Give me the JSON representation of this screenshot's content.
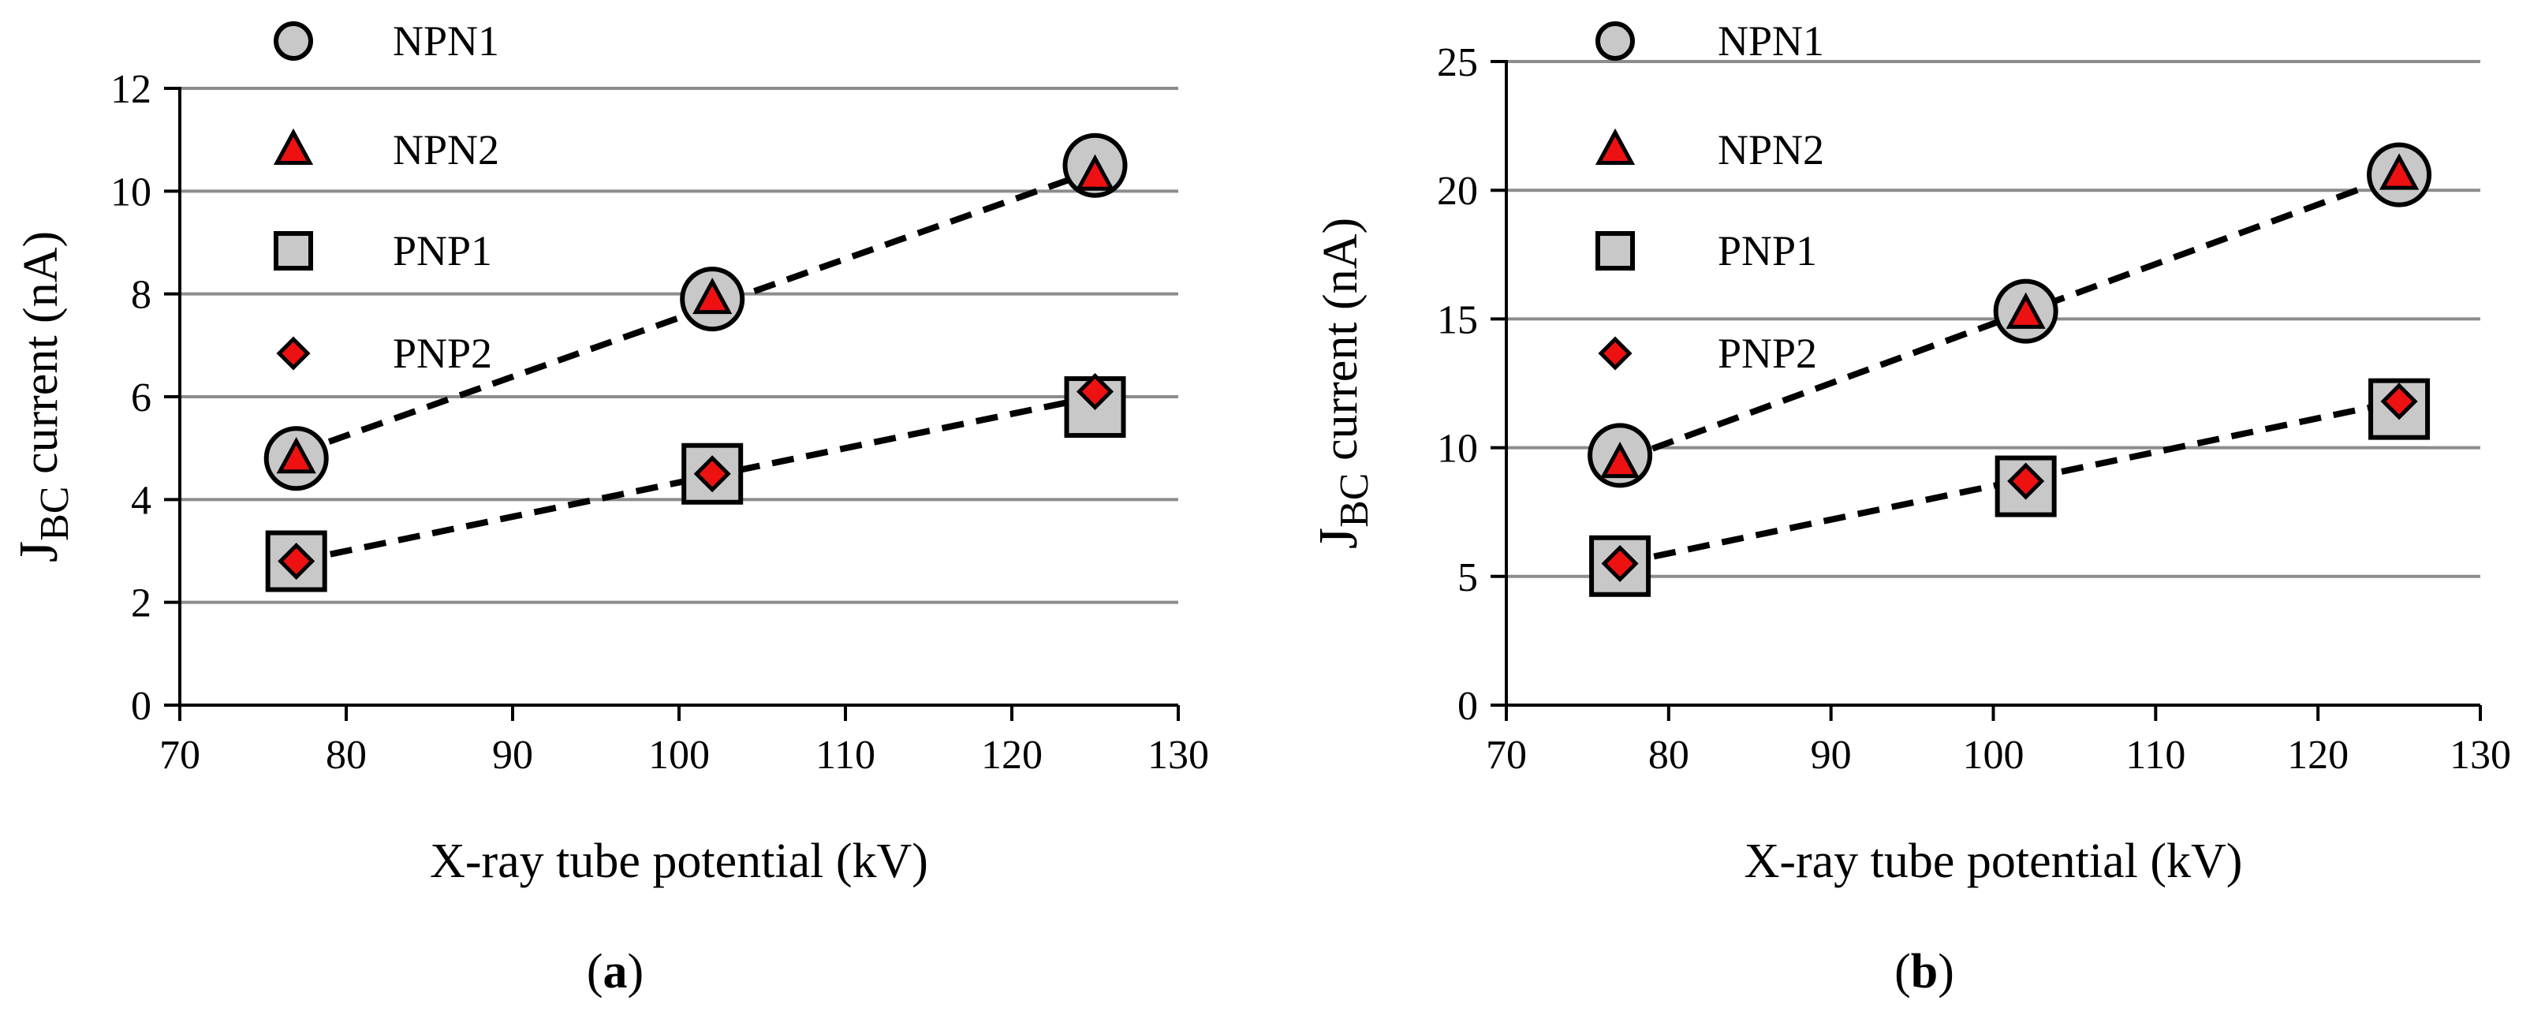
{
  "colors": {
    "grid": "#8c8c8c",
    "axis": "#000000",
    "marker_gray": "#c8c8c8",
    "marker_red": "#ee1111",
    "trend": "#000000"
  },
  "chart_data": [
    {
      "type": "scatter",
      "xlabel": "X-ray tube potential (kV)",
      "ylabel_main": "J",
      "ylabel_sub": "BC",
      "ylabel_rest": " current (nA)",
      "xlim": [
        70,
        130
      ],
      "ylim": [
        0,
        12
      ],
      "xticks": [
        70,
        80,
        90,
        100,
        110,
        120,
        130
      ],
      "yticks": [
        0,
        2,
        4,
        6,
        8,
        10,
        12
      ],
      "grid": "horizontal",
      "caption": {
        "open": "(",
        "label": "a",
        "close": ")"
      },
      "series": [
        {
          "name": "NPN1",
          "marker": "circle",
          "x": [
            77,
            102,
            125
          ],
          "y": [
            4.8,
            7.9,
            10.5
          ]
        },
        {
          "name": "NPN2",
          "marker": "triangle",
          "x": [
            77,
            102,
            125
          ],
          "y": [
            4.8,
            7.9,
            10.3
          ]
        },
        {
          "name": "PNP1",
          "marker": "square",
          "x": [
            77,
            102,
            125
          ],
          "y": [
            2.8,
            4.5,
            5.8
          ]
        },
        {
          "name": "PNP2",
          "marker": "diamond",
          "x": [
            77,
            102,
            125
          ],
          "y": [
            2.8,
            4.5,
            6.1
          ]
        }
      ],
      "trendlines": [
        {
          "from": [
            77,
            4.9
          ],
          "to": [
            125,
            10.4
          ]
        },
        {
          "from": [
            77,
            2.8
          ],
          "to": [
            125,
            6.0
          ]
        }
      ]
    },
    {
      "type": "scatter",
      "xlabel": "X-ray tube potential (kV)",
      "ylabel_main": "J",
      "ylabel_sub": "BC",
      "ylabel_rest": " current (nA)",
      "xlim": [
        70,
        130
      ],
      "ylim": [
        0,
        25
      ],
      "xticks": [
        70,
        80,
        90,
        100,
        110,
        120,
        130
      ],
      "yticks": [
        0,
        5,
        10,
        15,
        20,
        25
      ],
      "grid": "horizontal",
      "caption": {
        "open": "(",
        "label": "b",
        "close": ")"
      },
      "series": [
        {
          "name": "NPN1",
          "marker": "circle",
          "x": [
            77,
            102,
            125
          ],
          "y": [
            9.7,
            15.3,
            20.6
          ]
        },
        {
          "name": "NPN2",
          "marker": "triangle",
          "x": [
            77,
            102,
            125
          ],
          "y": [
            9.4,
            15.2,
            20.6
          ]
        },
        {
          "name": "PNP1",
          "marker": "square",
          "x": [
            77,
            102,
            125
          ],
          "y": [
            5.4,
            8.5,
            11.5
          ]
        },
        {
          "name": "PNP2",
          "marker": "diamond",
          "x": [
            77,
            102,
            125
          ],
          "y": [
            5.5,
            8.7,
            11.8
          ]
        }
      ],
      "trendlines": [
        {
          "from": [
            77,
            9.5
          ],
          "to": [
            125,
            20.6
          ]
        },
        {
          "from": [
            77,
            5.5
          ],
          "to": [
            125,
            11.8
          ]
        }
      ]
    }
  ]
}
